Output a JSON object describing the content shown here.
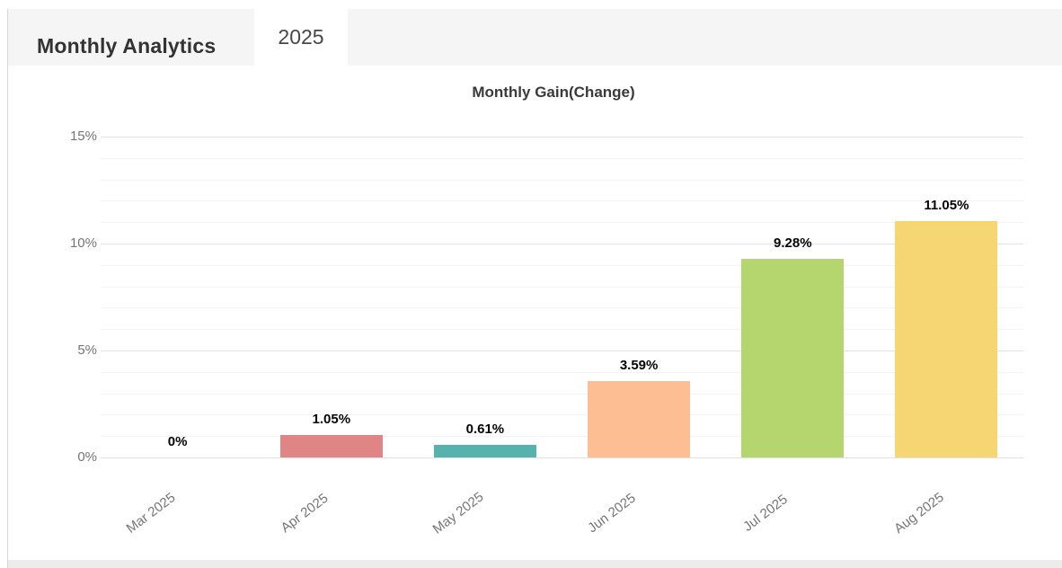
{
  "header": {
    "title": "Monthly Analytics",
    "tab_label": "2025"
  },
  "chart_data": {
    "type": "bar",
    "title": "Monthly Gain(Change)",
    "categories": [
      "Mar 2025",
      "Apr 2025",
      "May 2025",
      "Jun 2025",
      "Jul 2025",
      "Aug 2025"
    ],
    "values": [
      0,
      1.05,
      0.61,
      3.59,
      9.28,
      11.05
    ],
    "value_labels": [
      "0%",
      "1.05%",
      "0.61%",
      "3.59%",
      "9.28%",
      "11.05%"
    ],
    "bar_colors": [
      null,
      "#e08585",
      "#57b2ae",
      "#fcbe92",
      "#b5d56f",
      "#f5d672"
    ],
    "xlabel": "",
    "ylabel": "",
    "ylim": [
      0,
      15
    ],
    "y_axis": {
      "ticks": [
        {
          "value": 0,
          "label": "0%"
        },
        {
          "value": 5,
          "label": "5%"
        },
        {
          "value": 10,
          "label": "10%"
        },
        {
          "value": 15,
          "label": "15%"
        }
      ],
      "minor_step": 1
    },
    "grid": true,
    "legend": "none"
  }
}
